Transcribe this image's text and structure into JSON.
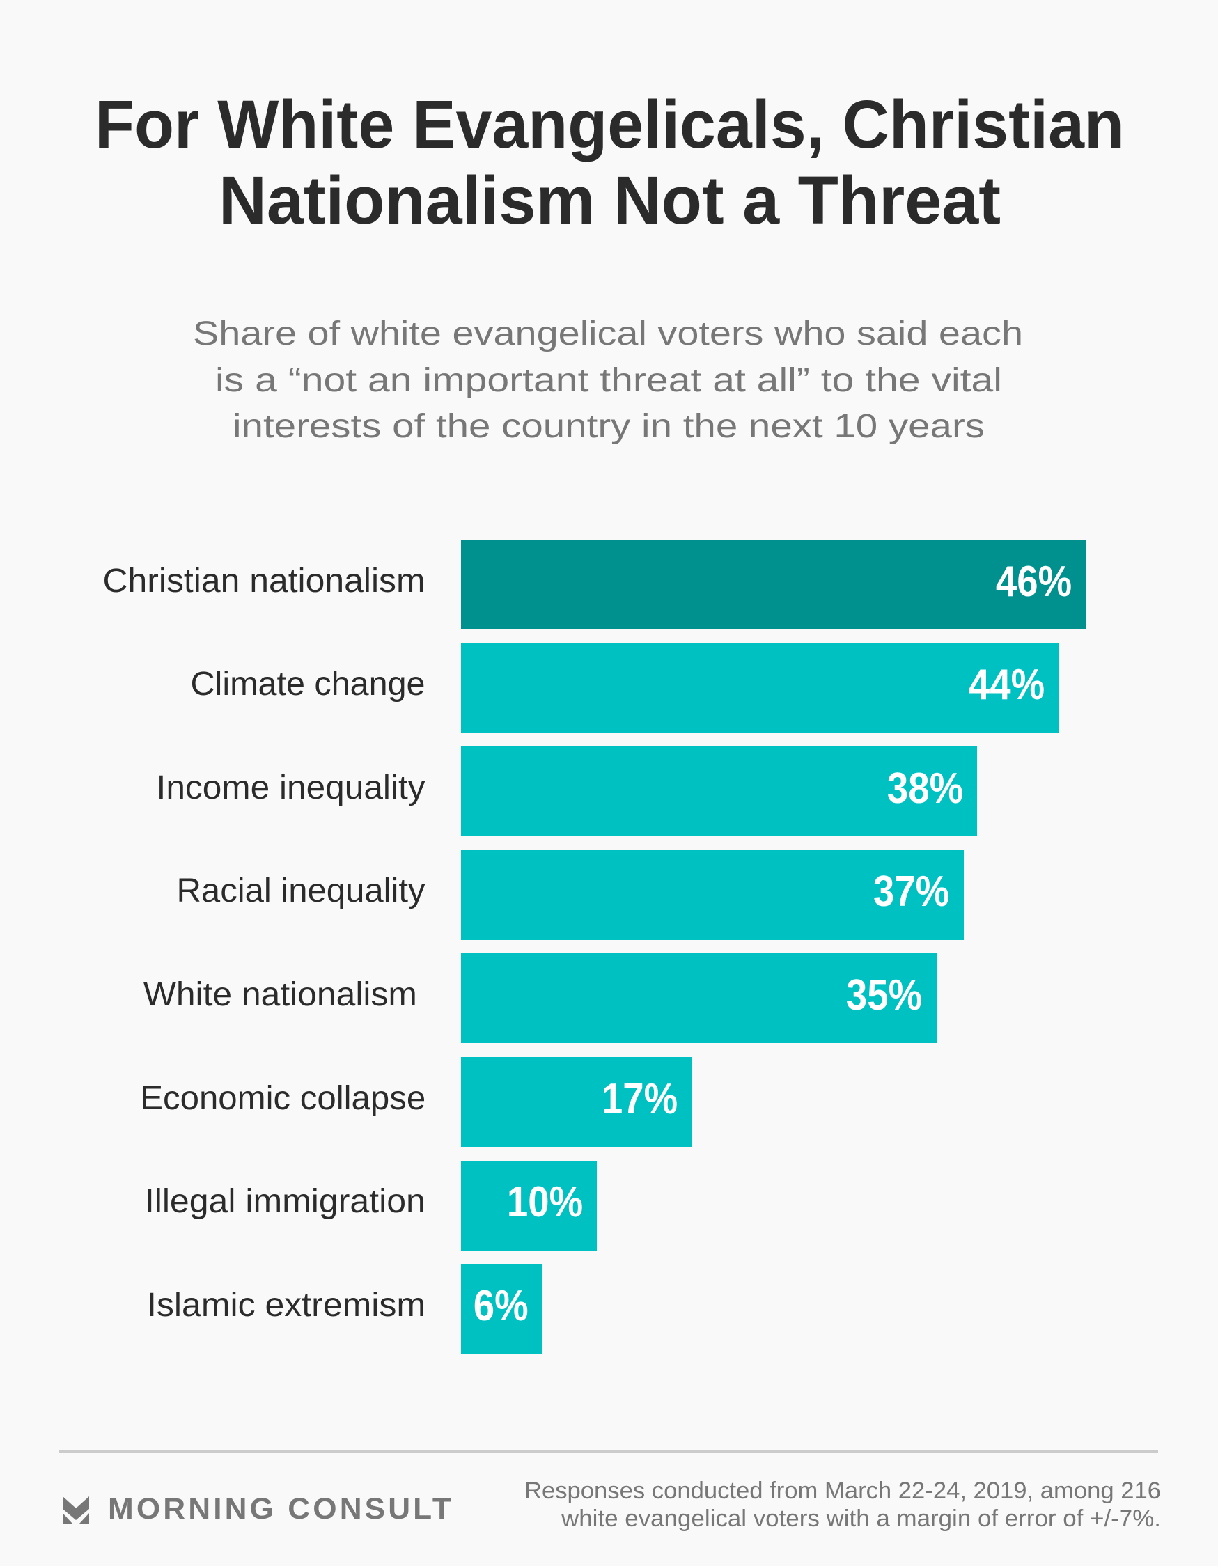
{
  "header": {
    "title_lines": [
      "For White Evangelicals, Christian",
      "Nationalism Not a Threat"
    ],
    "subtitle_lines": [
      "Share of white evangelical voters who said each",
      "is a “not an important threat at all” to the vital",
      "interests of the country in the next 10 years"
    ]
  },
  "chart_data": {
    "type": "bar",
    "orientation": "horizontal",
    "title": "For White Evangelicals, Christian Nationalism Not a Threat",
    "subtitle": "Share of white evangelical voters who said each is a “not an important threat at all” to the vital interests of the country in the next 10 years",
    "categories": [
      "Christian nationalism",
      "Climate change",
      "Income inequality",
      "Racial inequality",
      "White nationalism",
      "Economic collapse",
      "Illegal immigration",
      "Islamic extremism"
    ],
    "values": [
      46,
      44,
      38,
      37,
      35,
      17,
      10,
      6
    ],
    "value_labels": [
      "46%",
      "44%",
      "38%",
      "37%",
      "35%",
      "17%",
      "10%",
      "6%"
    ],
    "unit": "%",
    "xlim": [
      0,
      46
    ],
    "grid": false,
    "legend": "none",
    "highlight_index": 0,
    "colors": {
      "highlight": "#00918e",
      "default": "#00c1c1",
      "value_text": "#ffffff"
    }
  },
  "footer": {
    "brand": "MORNING CONSULT",
    "brand_icon": "morning-consult-chevron-icon",
    "note_lines": [
      "Responses conducted from March 22-24, 2019, among 216",
      "white evangelical voters with a margin of error of +/-7%."
    ]
  },
  "colors": {
    "background": "#f9f9f9",
    "title": "#2b2b2b",
    "subtitle": "#777777",
    "divider": "#cccccc"
  }
}
